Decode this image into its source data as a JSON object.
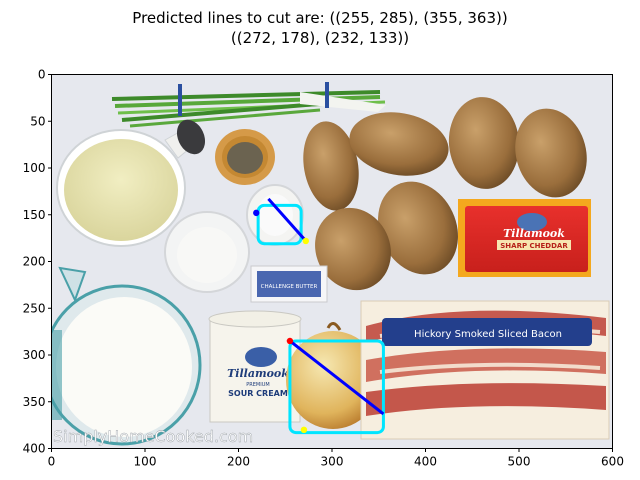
{
  "chart_data": {
    "type": "image",
    "title_lines": [
      "Predicted lines to cut are: ((255, 285), (355, 363))",
      "((272, 178), (232, 133))"
    ],
    "xlim": [
      0,
      600
    ],
    "ylim": [
      400,
      0
    ],
    "x_ticks": [
      "0",
      "100",
      "200",
      "300",
      "400",
      "500",
      "600"
    ],
    "y_ticks": [
      "0",
      "50",
      "100",
      "150",
      "200",
      "250",
      "300",
      "350",
      "400"
    ],
    "watermark": "SimplyHomeCooked.com",
    "lines": [
      {
        "from": [
          255,
          285
        ],
        "to": [
          355,
          363
        ],
        "color": "#0000ff"
      },
      {
        "from": [
          232,
          133
        ],
        "to": [
          272,
          178
        ],
        "color": "#0000ff"
      }
    ],
    "boxes": [
      {
        "x0": 255,
        "y0": 285,
        "x1": 355,
        "y1": 383,
        "color": "#00e5ff"
      },
      {
        "x0": 221,
        "y0": 140,
        "x1": 267,
        "y1": 181,
        "color": "#00e5ff"
      }
    ],
    "points": [
      {
        "x": 272,
        "y": 178,
        "color": "#ffff00"
      },
      {
        "x": 219,
        "y": 148,
        "color": "#0000ff"
      },
      {
        "x": 255,
        "y": 285,
        "color": "#ff0000"
      },
      {
        "x": 270,
        "y": 380,
        "color": "#ffff00"
      }
    ],
    "labels": {
      "cheese_brand": "Tillamook",
      "cheese_type": "SHARP CHEDDAR",
      "sour_cream_brand": "Tillamook",
      "sour_cream_sub": "PREMIUM",
      "sour_cream_type": "SOUR CREAM",
      "butter_label": "CHALLENGE BUTTER",
      "bacon_label": "Hickory Smoked Sliced Bacon"
    }
  }
}
